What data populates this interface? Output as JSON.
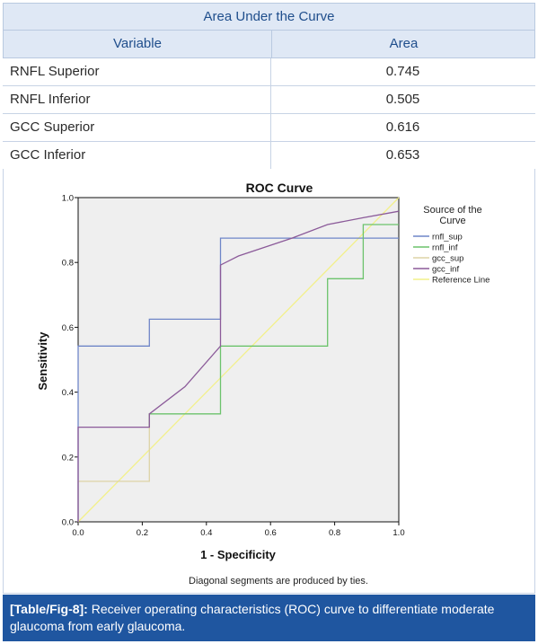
{
  "table": {
    "title": "Area Under the Curve",
    "columns": [
      "Variable",
      "Area"
    ],
    "rows": [
      {
        "variable": "RNFL Superior",
        "area": "0.745"
      },
      {
        "variable": "RNFL Inferior",
        "area": "0.505"
      },
      {
        "variable": "GCC Superior",
        "area": "0.616"
      },
      {
        "variable": "GCC Inferior",
        "area": "0.653"
      }
    ]
  },
  "caption": {
    "label": "[Table/Fig-8]:",
    "text": "Receiver operating characteristics (ROC) curve to differentiate moderate glaucoma from early glaucoma."
  },
  "chart_data": {
    "type": "line",
    "title": "ROC Curve",
    "xlabel": "1 - Specificity",
    "ylabel": "Sensitivity",
    "xlim": [
      0,
      1
    ],
    "ylim": [
      0,
      1
    ],
    "xticks": [
      "0.0",
      "0.2",
      "0.4",
      "0.6",
      "0.8",
      "1.0"
    ],
    "yticks": [
      "0.0",
      "0.2",
      "0.4",
      "0.6",
      "0.8",
      "1.0"
    ],
    "legend_title": "Source of the Curve",
    "legend_position": "right",
    "footnote": "Diagonal segments are produced by ties.",
    "grid": false,
    "series": [
      {
        "name": "rnfl_sup",
        "color": "#6f86c8",
        "x": [
          0,
          0,
          0.222,
          0.222,
          0.444,
          0.444,
          1.0
        ],
        "y": [
          0,
          0.542,
          0.542,
          0.625,
          0.625,
          0.875,
          0.875
        ]
      },
      {
        "name": "rnfl_inf",
        "color": "#6cc36c",
        "x": [
          0.222,
          0.222,
          0.444,
          0.444,
          0.778,
          0.778,
          0.889,
          0.889,
          1.0
        ],
        "y": [
          0.292,
          0.333,
          0.333,
          0.542,
          0.542,
          0.75,
          0.75,
          0.917,
          0.917
        ]
      },
      {
        "name": "gcc_sup",
        "color": "#ddd3a6",
        "x": [
          0,
          0,
          0.222,
          0.222
        ],
        "y": [
          0,
          0.125,
          0.125,
          0.333
        ]
      },
      {
        "name": "gcc_inf",
        "color": "#8b5a99",
        "x": [
          0,
          0,
          0.222,
          0.222,
          0.333,
          0.444,
          0.444,
          0.5,
          0.667,
          0.778,
          0.889,
          1.0
        ],
        "y": [
          0,
          0.292,
          0.292,
          0.333,
          0.417,
          0.542,
          0.792,
          0.82,
          0.875,
          0.917,
          0.938,
          0.958
        ]
      },
      {
        "name": "Reference Line",
        "color": "#f2f08a",
        "x": [
          0,
          1
        ],
        "y": [
          0,
          1
        ]
      }
    ]
  }
}
